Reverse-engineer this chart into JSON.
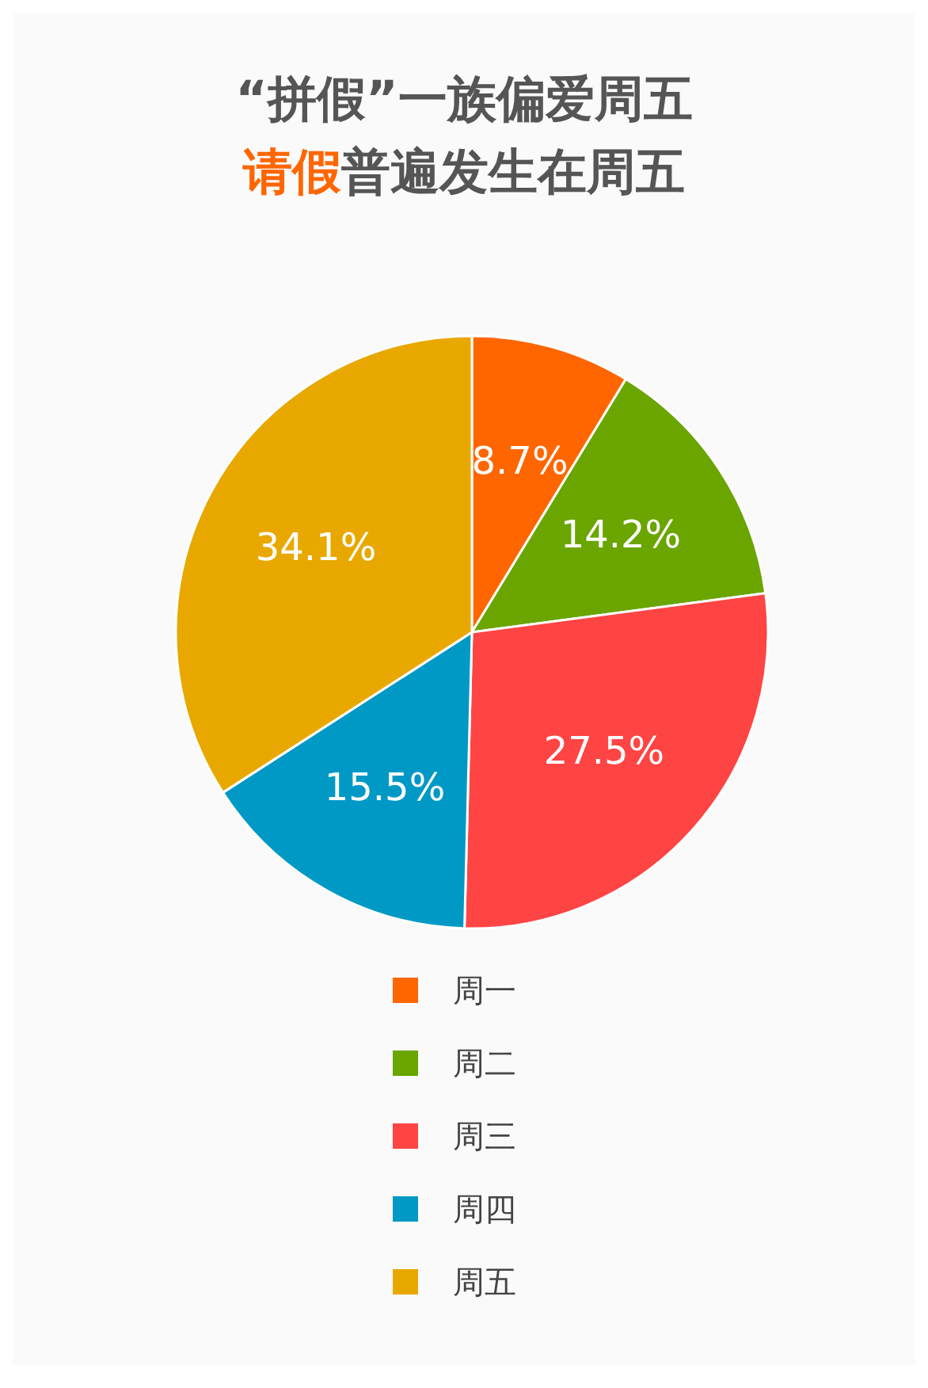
{
  "chart_data": {
    "type": "pie",
    "title": "“拼假”一族偏爱周五",
    "subtitle": "请假普遍发生在周五",
    "categories": [
      "周一",
      "周二",
      "周三",
      "周四",
      "周五"
    ],
    "values": [
      8.7,
      14.2,
      27.5,
      15.5,
      34.1
    ],
    "colors": [
      "#ff6600",
      "#6aa500",
      "#ff4444",
      "#0099c6",
      "#e8a800"
    ],
    "value_labels": [
      "8.7%",
      "14.2%",
      "27.5%",
      "15.5%",
      "34.1%"
    ],
    "legend": "bottom"
  }
}
